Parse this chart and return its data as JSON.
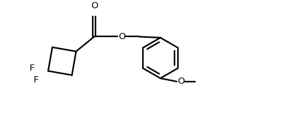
{
  "background_color": "#ffffff",
  "line_color": "#000000",
  "line_width": 1.6,
  "font_size": 9.5,
  "figsize": [
    4.1,
    1.72
  ],
  "dpi": 100,
  "xlim": [
    0.0,
    8.2
  ],
  "ylim": [
    0.0,
    3.44
  ]
}
